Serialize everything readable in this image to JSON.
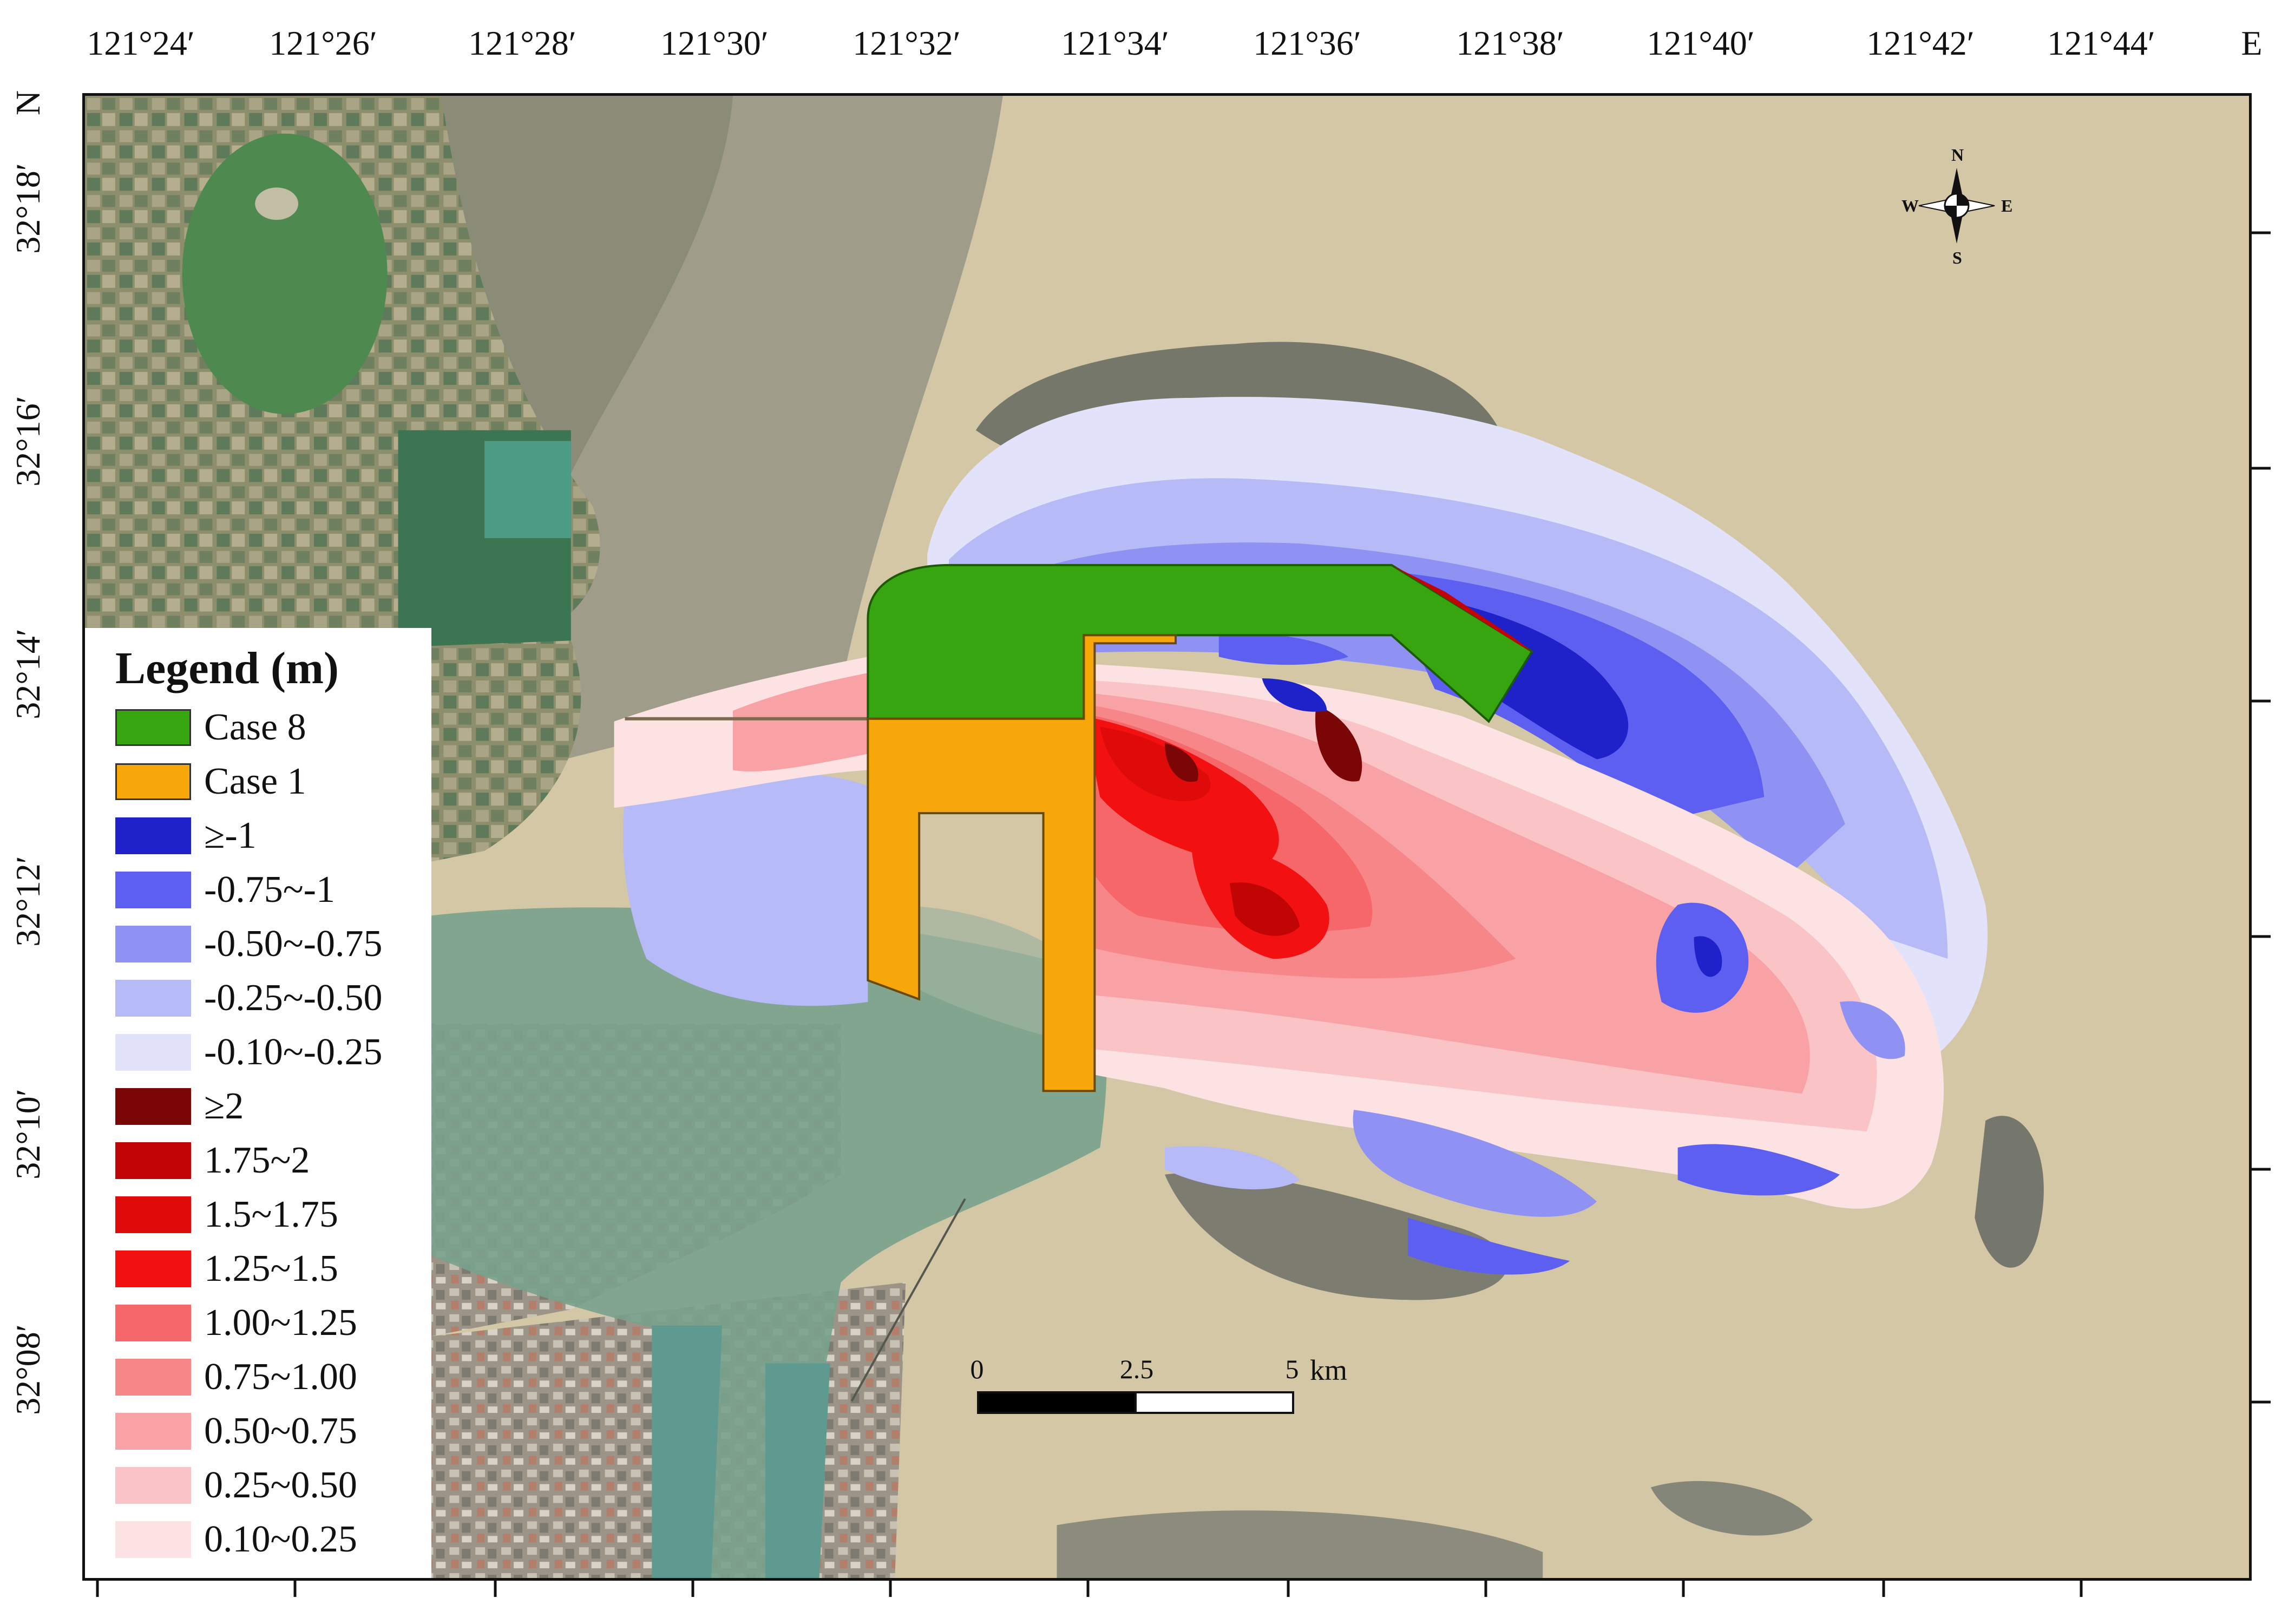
{
  "top_axis": {
    "labels": [
      "121°24′",
      "121°26′",
      "121°28′",
      "121°30′",
      "121°32′",
      "121°34′",
      "121°36′",
      "121°38′",
      "121°40′",
      "121°42′",
      "121°44′",
      "E"
    ]
  },
  "left_axis": {
    "labels": [
      "N",
      "32°18′",
      "32°16′",
      "32°14′",
      "32°12′",
      "32°10′",
      "32°08′"
    ]
  },
  "legend": {
    "title": "Legend (m)",
    "items": [
      {
        "label": "Case 8",
        "color": "#36a50f",
        "outlined": true
      },
      {
        "label": "Case 1",
        "color": "#f7a70a",
        "outlined": true
      },
      {
        "label": "≥-1",
        "color": "#1e22c8",
        "outlined": false
      },
      {
        "label": "-0.75~-1",
        "color": "#5d5ff0",
        "outlined": false
      },
      {
        "label": "-0.50~-0.75",
        "color": "#8f92f2",
        "outlined": false
      },
      {
        "label": "-0.25~-0.50",
        "color": "#b6baf6",
        "outlined": false
      },
      {
        "label": "-0.10~-0.25",
        "color": "#e2e2fb",
        "outlined": false
      },
      {
        "label": "≥2",
        "color": "#7b0606",
        "outlined": false
      },
      {
        "label": "1.75~2",
        "color": "#c10404",
        "outlined": false
      },
      {
        "label": "1.5~1.75",
        "color": "#df0b0b",
        "outlined": false
      },
      {
        "label": "1.25~1.5",
        "color": "#f21010",
        "outlined": false
      },
      {
        "label": "1.00~1.25",
        "color": "#f56769",
        "outlined": false
      },
      {
        "label": "0.75~1.00",
        "color": "#f78689",
        "outlined": false
      },
      {
        "label": "0.50~0.75",
        "color": "#f9a2a6",
        "outlined": false
      },
      {
        "label": "0.25~0.50",
        "color": "#fac3c6",
        "outlined": false
      },
      {
        "label": "0.10~0.25",
        "color": "#fde2e4",
        "outlined": false
      }
    ]
  },
  "scale_bar": {
    "labels": [
      "0",
      "2.5",
      "5"
    ],
    "unit": "km"
  },
  "north_arrow": {
    "n": "N",
    "s": "S",
    "e": "E",
    "w": "W"
  }
}
